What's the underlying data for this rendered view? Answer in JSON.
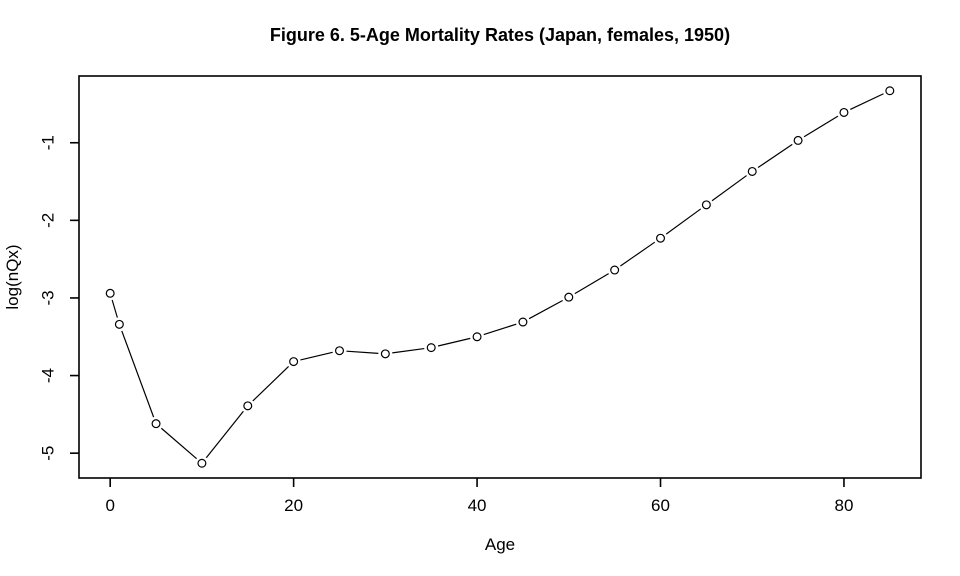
{
  "figure": {
    "background_color": "#ffffff",
    "line_color": "#000000",
    "text_color": "#000000"
  },
  "chart_data": {
    "type": "line",
    "title": "Figure 6. 5-Age Mortality Rates (Japan, females, 1950)",
    "xlabel": "Age",
    "ylabel": "log(nQx)",
    "marker": "open-circle",
    "grid": false,
    "legend": null,
    "x": [
      0,
      1,
      5,
      10,
      15,
      20,
      25,
      30,
      35,
      40,
      45,
      50,
      55,
      60,
      65,
      70,
      75,
      80,
      85
    ],
    "y": [
      -2.94,
      -3.34,
      -4.62,
      -5.13,
      -4.39,
      -3.82,
      -3.68,
      -3.72,
      -3.64,
      -3.5,
      -3.31,
      -2.99,
      -2.64,
      -2.23,
      -1.8,
      -1.37,
      -0.97,
      -0.61,
      -0.33
    ],
    "x_ticks": [
      0,
      20,
      40,
      60,
      80
    ],
    "y_ticks": [
      -1,
      -2,
      -3,
      -4,
      -5
    ],
    "xlim": [
      -3.4,
      88.4
    ],
    "ylim": [
      -5.32,
      -0.14
    ]
  }
}
